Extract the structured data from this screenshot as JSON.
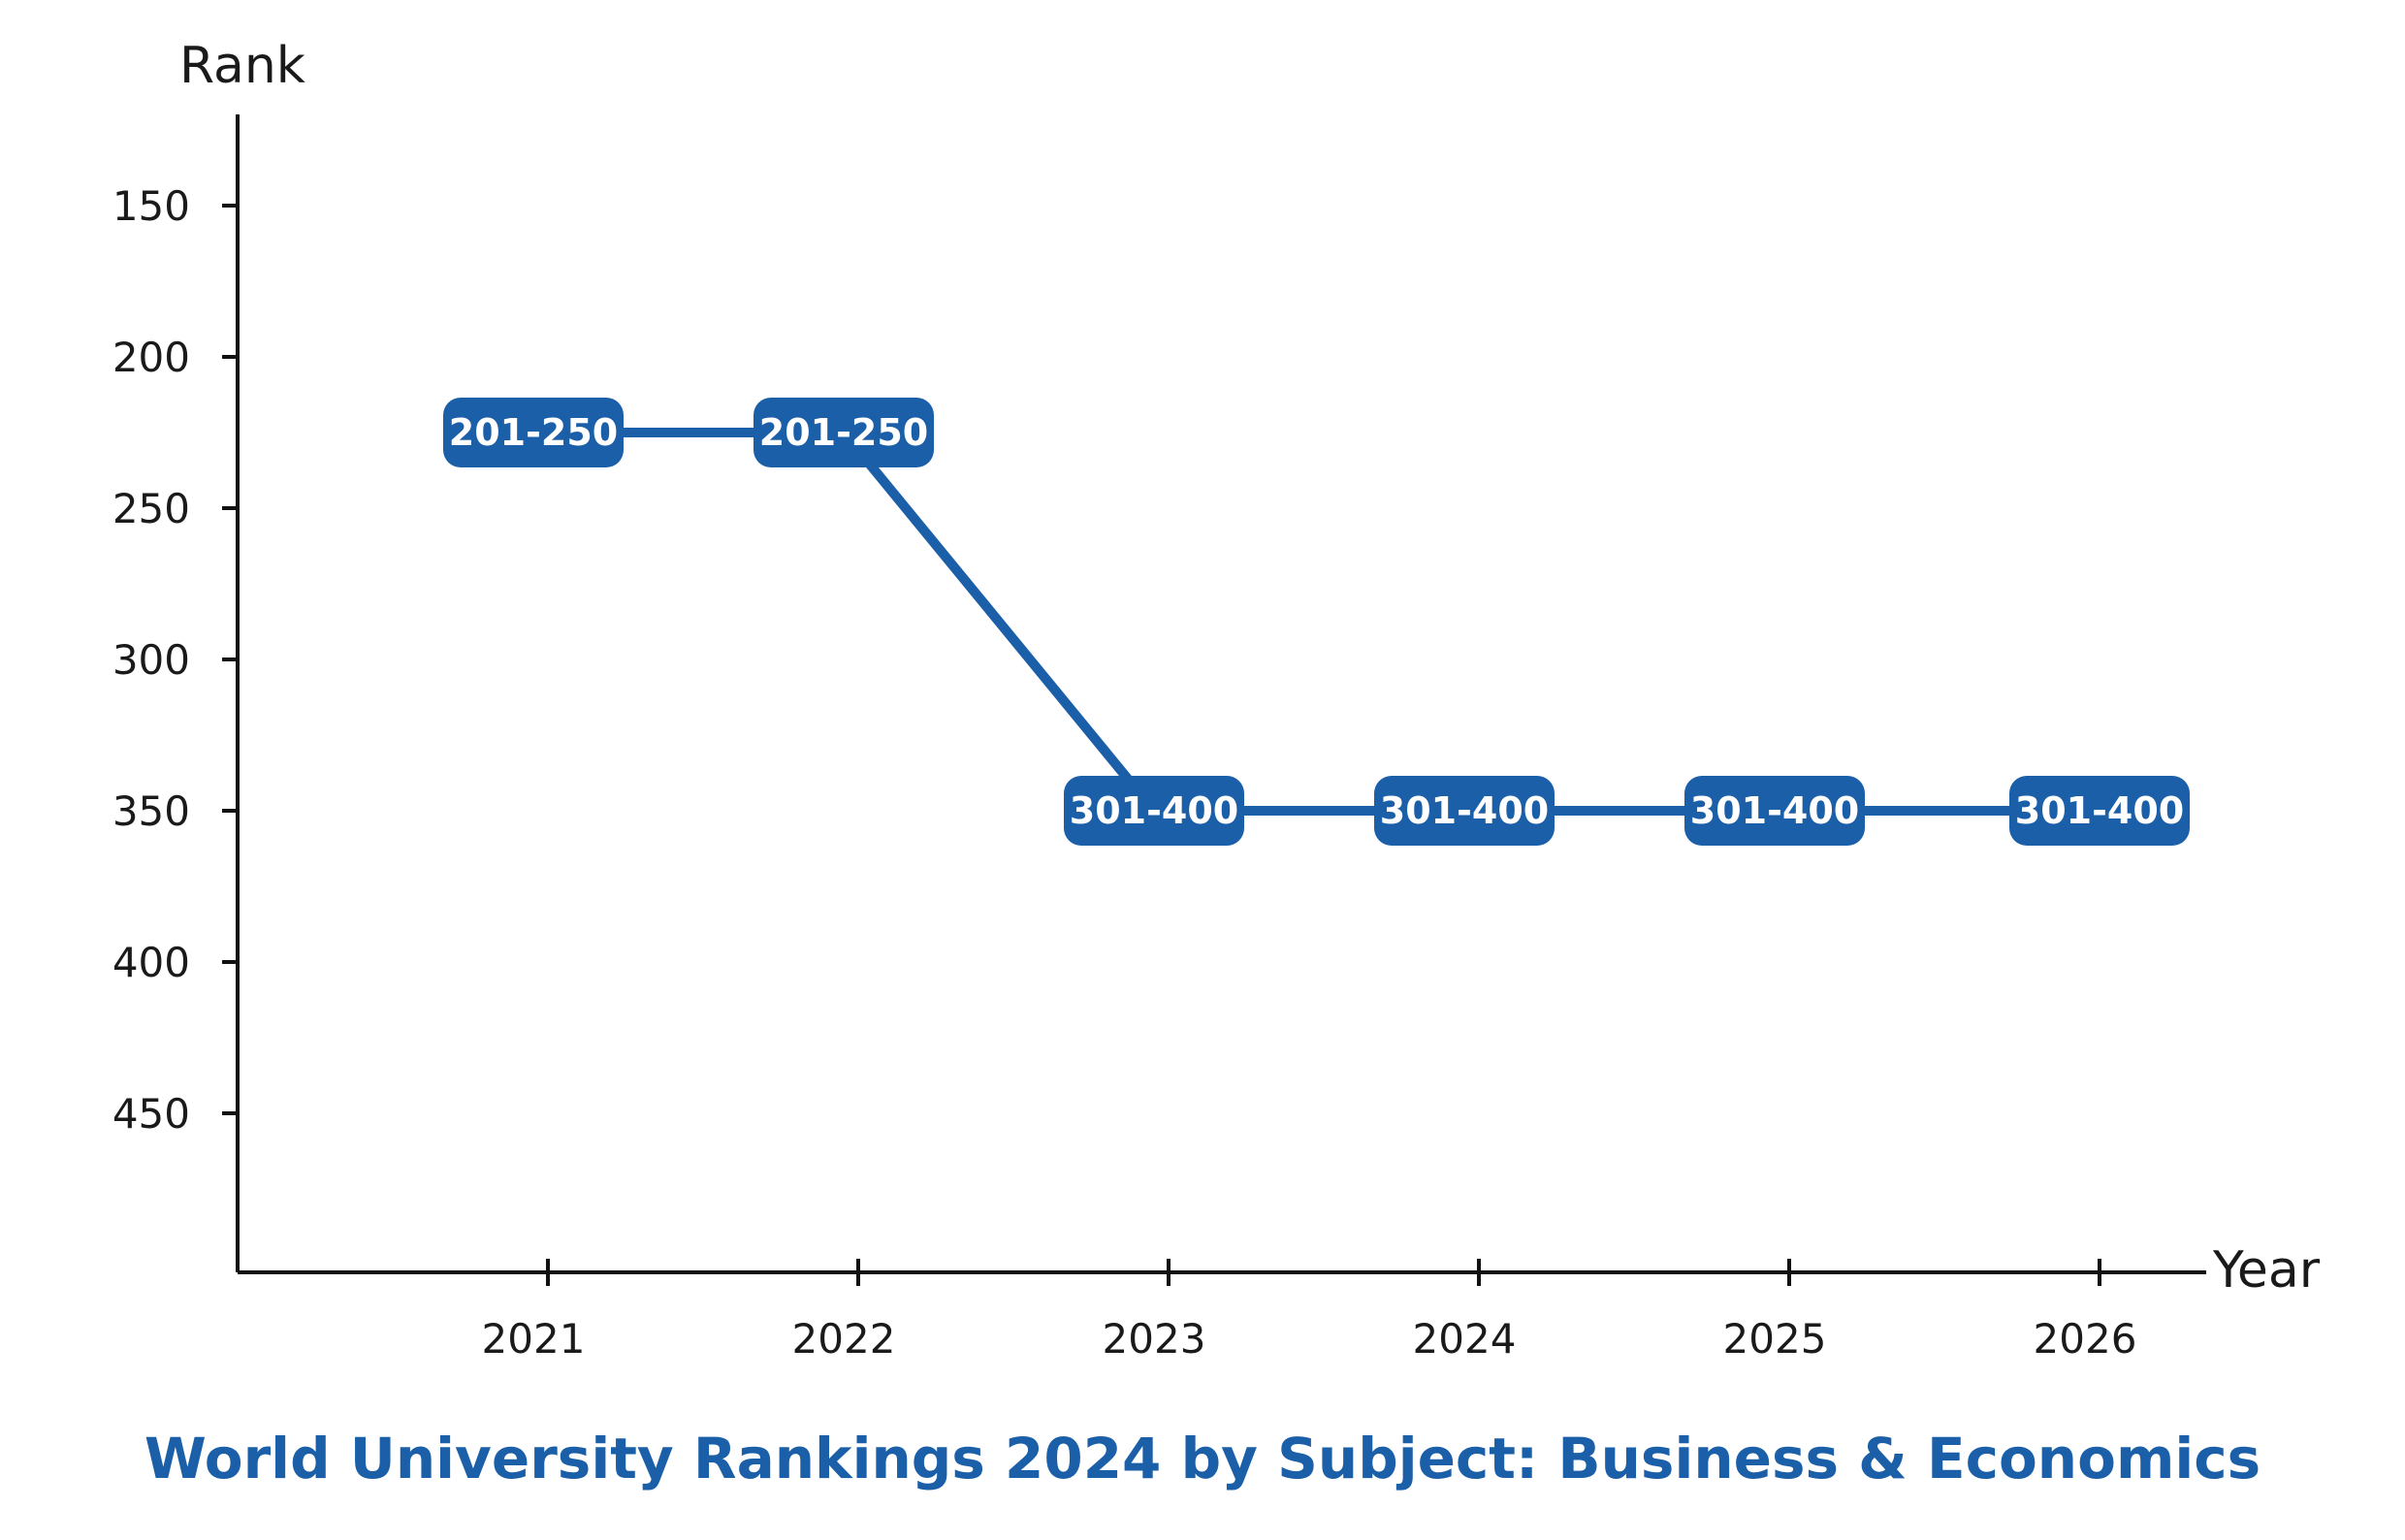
{
  "chart_data": {
    "type": "line",
    "title": "World University Rankings 2024 by Subject: Business & Economics",
    "xlabel": "Year",
    "ylabel": "Rank",
    "x": [
      "2021",
      "2022",
      "2023",
      "2024",
      "2025",
      "2026"
    ],
    "y_ticks": [
      150,
      200,
      250,
      300,
      350,
      400,
      450
    ],
    "ylim": [
      120,
      500
    ],
    "y_inverted": true,
    "grid": false,
    "series": [
      {
        "values": [
          225,
          225,
          350,
          350,
          350,
          350
        ],
        "labels": [
          "201-250",
          "201-250",
          "301-400",
          "301-400",
          "301-400",
          "301-400"
        ]
      }
    ],
    "colors": {
      "series": "#1a5fa8",
      "title": "#1a5fa8",
      "axis": "#111111"
    }
  }
}
